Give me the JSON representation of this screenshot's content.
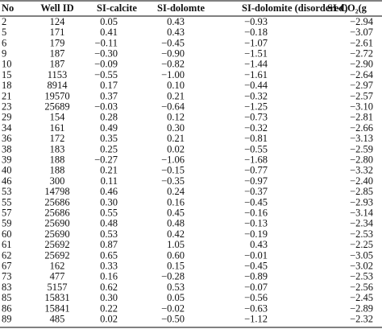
{
  "table": {
    "header": [
      "No",
      "Well ID",
      "SI-calcite",
      "SI-dolomte",
      "SI-dolomite (disordered)",
      "SI-CO₂(g"
    ],
    "rows": [
      [
        "2",
        "124",
        "0.05",
        "0.43",
        "−0.93",
        "−2.94"
      ],
      [
        "5",
        "171",
        "0.41",
        "0.43",
        "−0.18",
        "−3.07"
      ],
      [
        "6",
        "179",
        "−0.11",
        "−0.45",
        "−1.07",
        "−2.61"
      ],
      [
        "9",
        "187",
        "−0.30",
        "−0.90",
        "−1.51",
        "−2.72"
      ],
      [
        "10",
        "187",
        "−0.09",
        "−0.82",
        "−1.44",
        "−2.90"
      ],
      [
        "15",
        "1153",
        "−0.55",
        "−1.00",
        "−1.61",
        "−2.64"
      ],
      [
        "18",
        "8914",
        "0.17",
        "0.10",
        "−0.44",
        "−2.97"
      ],
      [
        "21",
        "19570",
        "0.37",
        "0.21",
        "−0.32",
        "−2.57"
      ],
      [
        "23",
        "25689",
        "−0.03",
        "−0.64",
        "−1.25",
        "−3.10"
      ],
      [
        "29",
        "154",
        "0.28",
        "0.12",
        "−0.73",
        "−2.81"
      ],
      [
        "34",
        "161",
        "0.49",
        "0.30",
        "−0.32",
        "−2.66"
      ],
      [
        "36",
        "172",
        "0.35",
        "0.21",
        "−0.81",
        "−3.13"
      ],
      [
        "38",
        "183",
        "0.25",
        "0.02",
        "−0.55",
        "−2.59"
      ],
      [
        "39",
        "188",
        "−0.27",
        "−1.06",
        "−1.68",
        "−2.80"
      ],
      [
        "40",
        "188",
        "0.21",
        "−0.15",
        "−0.77",
        "−3.32"
      ],
      [
        "46",
        "300",
        "0.11",
        "−0.35",
        "−0.97",
        "−2.40"
      ],
      [
        "53",
        "14798",
        "0.46",
        "0.24",
        "−0.37",
        "−2.85"
      ],
      [
        "55",
        "25686",
        "0.30",
        "0.16",
        "−0.45",
        "−2.93"
      ],
      [
        "57",
        "25686",
        "0.55",
        "0.45",
        "−0.16",
        "−3.14"
      ],
      [
        "59",
        "25690",
        "0.48",
        "0.48",
        "−0.13",
        "−2.34"
      ],
      [
        "60",
        "25690",
        "0.53",
        "0.42",
        "−0.19",
        "−2.53"
      ],
      [
        "61",
        "25692",
        "0.87",
        "1.05",
        "0.43",
        "−2.25"
      ],
      [
        "62",
        "25692",
        "0.65",
        "0.60",
        "−0.01",
        "−3.05"
      ],
      [
        "67",
        "162",
        "0.33",
        "0.15",
        "−0.45",
        "−3.02"
      ],
      [
        "73",
        "477",
        "0.16",
        "−0.28",
        "−0.89",
        "−2.53"
      ],
      [
        "83",
        "5157",
        "0.62",
        "0.53",
        "−0.07",
        "−2.56"
      ],
      [
        "85",
        "15831",
        "0.30",
        "0.05",
        "−0.56",
        "−2.45"
      ],
      [
        "86",
        "15841",
        "0.22",
        "−0.02",
        "−0.63",
        "−2.89"
      ],
      [
        "89",
        "485",
        "0.02",
        "−0.50",
        "−1.12",
        "−2.32"
      ]
    ]
  }
}
